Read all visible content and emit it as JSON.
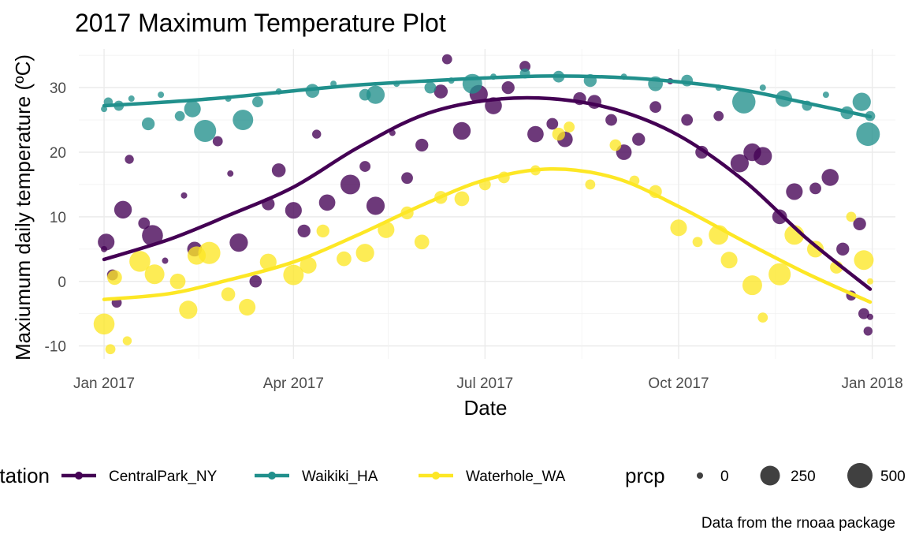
{
  "chart_data": {
    "type": "scatter",
    "title": "2017 Maximum Temperature Plot",
    "xlabel": "Date",
    "ylabel": "Maxiumum daily temperature (ºC)",
    "caption": "Data from the rnoaa package",
    "xlim": [
      "2016-12-20",
      "2018-01-12"
    ],
    "ylim": [
      -12,
      36
    ],
    "x_ticks": [
      "2017-01-01",
      "2017-04-01",
      "2017-07-01",
      "2017-10-01",
      "2018-01-01"
    ],
    "x_tick_labels": [
      "Jan 2017",
      "Apr 2017",
      "Jul 2017",
      "Oct 2017",
      "Jan 2018"
    ],
    "y_ticks": [
      -10,
      0,
      10,
      20,
      30
    ],
    "y_tick_labels": [
      "-10",
      "0",
      "10",
      "20",
      "30"
    ],
    "grid": true,
    "colour_legend": {
      "title": "station",
      "placement": "bottom",
      "items": [
        "CentralPark_NY",
        "Waikiki_HA",
        "Waterhole_WA"
      ]
    },
    "size_legend": {
      "title": "prcp",
      "placement": "bottom",
      "items": [
        "0",
        "250",
        "500"
      ]
    },
    "series": [
      {
        "name": "CentralPark_NY",
        "color": "#440154",
        "smooth": [
          [
            "2017-01-01",
            3.4
          ],
          [
            "2017-02-01",
            6.5
          ],
          [
            "2017-03-01",
            10.2
          ],
          [
            "2017-04-01",
            14.6
          ],
          [
            "2017-05-01",
            20.6
          ],
          [
            "2017-06-01",
            25.7
          ],
          [
            "2017-07-01",
            28.0
          ],
          [
            "2017-08-01",
            28.3
          ],
          [
            "2017-09-01",
            26.6
          ],
          [
            "2017-10-01",
            22.6
          ],
          [
            "2017-11-01",
            15.6
          ],
          [
            "2017-12-01",
            6.6
          ],
          [
            "2017-12-31",
            -1.2
          ]
        ],
        "points": [
          [
            "2017-01-01",
            5.0,
            0
          ],
          [
            "2017-01-02",
            6.1,
            150
          ],
          [
            "2017-01-05",
            1.0,
            30
          ],
          [
            "2017-01-07",
            -3.3,
            20
          ],
          [
            "2017-01-10",
            11.1,
            180
          ],
          [
            "2017-01-13",
            18.9,
            10
          ],
          [
            "2017-01-20",
            9.0,
            40
          ],
          [
            "2017-01-24",
            7.1,
            300
          ],
          [
            "2017-01-30",
            3.2,
            0
          ],
          [
            "2017-02-08",
            13.3,
            0
          ],
          [
            "2017-02-13",
            5.0,
            100
          ],
          [
            "2017-02-24",
            21.7,
            20
          ],
          [
            "2017-03-02",
            16.7,
            0
          ],
          [
            "2017-03-06",
            6.0,
            200
          ],
          [
            "2017-03-14",
            0.0,
            50
          ],
          [
            "2017-03-20",
            12.0,
            60
          ],
          [
            "2017-03-25",
            17.2,
            80
          ],
          [
            "2017-04-01",
            11.0,
            150
          ],
          [
            "2017-04-06",
            7.8,
            60
          ],
          [
            "2017-04-12",
            22.8,
            10
          ],
          [
            "2017-04-17",
            12.2,
            140
          ],
          [
            "2017-04-28",
            15.0,
            250
          ],
          [
            "2017-05-05",
            17.8,
            30
          ],
          [
            "2017-05-10",
            11.7,
            200
          ],
          [
            "2017-05-18",
            23.0,
            0
          ],
          [
            "2017-05-25",
            16.0,
            40
          ],
          [
            "2017-06-01",
            21.1,
            60
          ],
          [
            "2017-06-10",
            29.4,
            80
          ],
          [
            "2017-06-13",
            34.4,
            20
          ],
          [
            "2017-06-20",
            23.3,
            180
          ],
          [
            "2017-06-28",
            29.0,
            200
          ],
          [
            "2017-07-05",
            27.2,
            160
          ],
          [
            "2017-07-12",
            30.0,
            60
          ],
          [
            "2017-07-20",
            33.3,
            30
          ],
          [
            "2017-07-25",
            22.8,
            140
          ],
          [
            "2017-08-02",
            24.4,
            40
          ],
          [
            "2017-08-08",
            22.0,
            120
          ],
          [
            "2017-08-15",
            28.3,
            60
          ],
          [
            "2017-08-22",
            27.8,
            80
          ],
          [
            "2017-08-30",
            25.0,
            40
          ],
          [
            "2017-09-05",
            20.0,
            120
          ],
          [
            "2017-09-12",
            22.0,
            60
          ],
          [
            "2017-09-20",
            27.0,
            40
          ],
          [
            "2017-09-27",
            31.0,
            0
          ],
          [
            "2017-10-05",
            25.0,
            40
          ],
          [
            "2017-10-12",
            20.0,
            60
          ],
          [
            "2017-10-20",
            25.6,
            20
          ],
          [
            "2017-10-30",
            18.3,
            200
          ],
          [
            "2017-11-05",
            20.0,
            180
          ],
          [
            "2017-11-10",
            19.4,
            200
          ],
          [
            "2017-11-18",
            10.0,
            100
          ],
          [
            "2017-11-25",
            13.9,
            150
          ],
          [
            "2017-12-05",
            14.4,
            40
          ],
          [
            "2017-12-12",
            16.1,
            160
          ],
          [
            "2017-12-18",
            5.0,
            60
          ],
          [
            "2017-12-22",
            -2.2,
            20
          ],
          [
            "2017-12-26",
            8.9,
            60
          ],
          [
            "2017-12-28",
            -5.0,
            30
          ],
          [
            "2017-12-30",
            -7.7,
            10
          ],
          [
            "2017-12-31",
            -5.5,
            0
          ]
        ]
      },
      {
        "name": "Waikiki_HA",
        "color": "#21908C",
        "smooth": [
          [
            "2017-01-01",
            27.2
          ],
          [
            "2017-02-01",
            27.8
          ],
          [
            "2017-03-01",
            28.5
          ],
          [
            "2017-04-01",
            29.5
          ],
          [
            "2017-05-01",
            30.4
          ],
          [
            "2017-06-01",
            31.0
          ],
          [
            "2017-07-01",
            31.5
          ],
          [
            "2017-08-01",
            31.8
          ],
          [
            "2017-09-01",
            31.6
          ],
          [
            "2017-10-01",
            30.9
          ],
          [
            "2017-11-01",
            29.6
          ],
          [
            "2017-12-01",
            27.6
          ],
          [
            "2017-12-31",
            25.5
          ]
        ],
        "points": [
          [
            "2017-01-01",
            26.7,
            0
          ],
          [
            "2017-01-03",
            27.8,
            10
          ],
          [
            "2017-01-08",
            27.2,
            20
          ],
          [
            "2017-01-14",
            28.3,
            0
          ],
          [
            "2017-01-22",
            24.4,
            60
          ],
          [
            "2017-01-28",
            28.9,
            0
          ],
          [
            "2017-02-06",
            25.6,
            20
          ],
          [
            "2017-02-12",
            26.7,
            150
          ],
          [
            "2017-02-18",
            23.3,
            350
          ],
          [
            "2017-03-01",
            28.3,
            0
          ],
          [
            "2017-03-08",
            25.0,
            280
          ],
          [
            "2017-03-15",
            27.8,
            30
          ],
          [
            "2017-03-25",
            29.4,
            0
          ],
          [
            "2017-04-10",
            29.5,
            80
          ],
          [
            "2017-04-20",
            30.6,
            0
          ],
          [
            "2017-05-05",
            28.9,
            40
          ],
          [
            "2017-05-10",
            28.9,
            200
          ],
          [
            "2017-05-20",
            30.6,
            0
          ],
          [
            "2017-06-05",
            30.0,
            40
          ],
          [
            "2017-06-15",
            31.1,
            0
          ],
          [
            "2017-06-25",
            30.6,
            250
          ],
          [
            "2017-07-05",
            31.7,
            0
          ],
          [
            "2017-07-20",
            32.2,
            20
          ],
          [
            "2017-08-05",
            31.7,
            40
          ],
          [
            "2017-08-20",
            31.1,
            60
          ],
          [
            "2017-09-05",
            31.7,
            0
          ],
          [
            "2017-09-20",
            30.6,
            100
          ],
          [
            "2017-10-05",
            31.1,
            40
          ],
          [
            "2017-10-20",
            30.0,
            0
          ],
          [
            "2017-11-01",
            27.8,
            400
          ],
          [
            "2017-11-10",
            30.0,
            0
          ],
          [
            "2017-11-20",
            28.3,
            150
          ],
          [
            "2017-12-01",
            27.2,
            20
          ],
          [
            "2017-12-10",
            28.9,
            0
          ],
          [
            "2017-12-20",
            26.1,
            60
          ],
          [
            "2017-12-27",
            27.8,
            200
          ],
          [
            "2017-12-30",
            22.8,
            420
          ],
          [
            "2017-12-31",
            25.6,
            20
          ]
        ]
      },
      {
        "name": "Waterhole_WA",
        "color": "#FDE725",
        "smooth": [
          [
            "2017-01-01",
            -2.8
          ],
          [
            "2017-02-01",
            -1.9
          ],
          [
            "2017-03-01",
            0.2
          ],
          [
            "2017-04-01",
            3.0
          ],
          [
            "2017-05-01",
            7.1
          ],
          [
            "2017-06-01",
            11.8
          ],
          [
            "2017-07-01",
            15.7
          ],
          [
            "2017-08-01",
            17.4
          ],
          [
            "2017-09-01",
            16.0
          ],
          [
            "2017-10-01",
            11.6
          ],
          [
            "2017-11-01",
            6.2
          ],
          [
            "2017-12-01",
            1.2
          ],
          [
            "2017-12-31",
            -3.2
          ]
        ],
        "points": [
          [
            "2017-01-01",
            -6.6,
            300
          ],
          [
            "2017-01-04",
            -10.5,
            20
          ],
          [
            "2017-01-06",
            0.6,
            100
          ],
          [
            "2017-01-12",
            -9.2,
            10
          ],
          [
            "2017-01-18",
            3.1,
            300
          ],
          [
            "2017-01-25",
            1.1,
            250
          ],
          [
            "2017-02-05",
            0.0,
            120
          ],
          [
            "2017-02-10",
            -4.4,
            200
          ],
          [
            "2017-02-14",
            4.0,
            200
          ],
          [
            "2017-02-20",
            4.4,
            350
          ],
          [
            "2017-03-01",
            -2.0,
            80
          ],
          [
            "2017-03-10",
            -4.0,
            150
          ],
          [
            "2017-03-20",
            3.0,
            150
          ],
          [
            "2017-04-01",
            1.0,
            280
          ],
          [
            "2017-04-08",
            2.5,
            150
          ],
          [
            "2017-04-15",
            7.8,
            60
          ],
          [
            "2017-04-25",
            3.5,
            100
          ],
          [
            "2017-05-05",
            4.4,
            200
          ],
          [
            "2017-05-15",
            8.0,
            150
          ],
          [
            "2017-05-25",
            10.6,
            60
          ],
          [
            "2017-06-01",
            6.1,
            100
          ],
          [
            "2017-06-10",
            13.0,
            60
          ],
          [
            "2017-06-20",
            12.8,
            100
          ],
          [
            "2017-07-01",
            15.0,
            40
          ],
          [
            "2017-07-10",
            16.1,
            40
          ],
          [
            "2017-07-25",
            17.2,
            20
          ],
          [
            "2017-08-05",
            22.8,
            60
          ],
          [
            "2017-08-10",
            23.9,
            30
          ],
          [
            "2017-08-20",
            15.0,
            20
          ],
          [
            "2017-09-01",
            21.1,
            40
          ],
          [
            "2017-09-10",
            15.6,
            20
          ],
          [
            "2017-09-20",
            13.9,
            60
          ],
          [
            "2017-10-01",
            8.3,
            150
          ],
          [
            "2017-10-10",
            6.1,
            20
          ],
          [
            "2017-10-20",
            7.2,
            250
          ],
          [
            "2017-10-25",
            3.3,
            150
          ],
          [
            "2017-11-05",
            -0.6,
            250
          ],
          [
            "2017-11-10",
            -5.6,
            20
          ],
          [
            "2017-11-18",
            1.1,
            350
          ],
          [
            "2017-11-25",
            7.2,
            250
          ],
          [
            "2017-12-05",
            5.0,
            150
          ],
          [
            "2017-12-15",
            2.2,
            60
          ],
          [
            "2017-12-22",
            10.0,
            20
          ],
          [
            "2017-12-28",
            3.3,
            250
          ],
          [
            "2017-12-31",
            0.0,
            0
          ]
        ]
      }
    ]
  }
}
